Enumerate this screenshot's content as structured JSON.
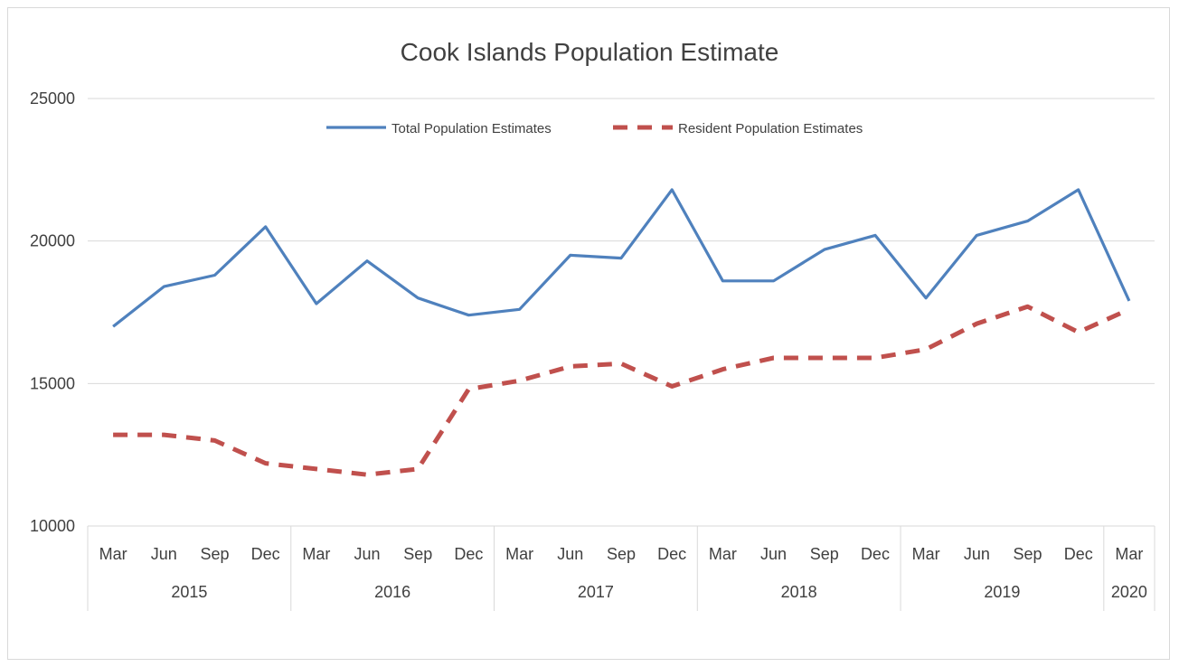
{
  "chart_data": {
    "type": "line",
    "title": "Cook Islands Population Estimate",
    "xlabel": "",
    "ylabel": "",
    "ylim": [
      10000,
      25000
    ],
    "yticks": [
      10000,
      15000,
      20000,
      25000
    ],
    "grid": true,
    "legend_position": "top",
    "categories": [
      "Mar",
      "Jun",
      "Sep",
      "Dec",
      "Mar",
      "Jun",
      "Sep",
      "Dec",
      "Mar",
      "Jun",
      "Sep",
      "Dec",
      "Mar",
      "Jun",
      "Sep",
      "Dec",
      "Mar",
      "Jun",
      "Sep",
      "Dec",
      "Mar"
    ],
    "years": [
      {
        "label": "2015",
        "count": 4
      },
      {
        "label": "2016",
        "count": 4
      },
      {
        "label": "2017",
        "count": 4
      },
      {
        "label": "2018",
        "count": 4
      },
      {
        "label": "2019",
        "count": 4
      },
      {
        "label": "2020",
        "count": 1
      }
    ],
    "series": [
      {
        "name": "Total Population Estimates",
        "color": "#4f81bd",
        "dash": "solid",
        "values": [
          17000,
          18400,
          18800,
          20500,
          17800,
          19300,
          18000,
          17400,
          17600,
          19500,
          19400,
          21800,
          18600,
          18600,
          19700,
          20200,
          18000,
          20200,
          20700,
          21800,
          17900
        ]
      },
      {
        "name": "Resident Population Estimates",
        "color": "#c0504d",
        "dash": "dashed",
        "values": [
          13200,
          13200,
          13000,
          12200,
          12000,
          11800,
          12000,
          14800,
          15100,
          15600,
          15700,
          14900,
          15500,
          15900,
          15900,
          15900,
          16200,
          17100,
          17700,
          16800,
          17600
        ]
      }
    ]
  }
}
